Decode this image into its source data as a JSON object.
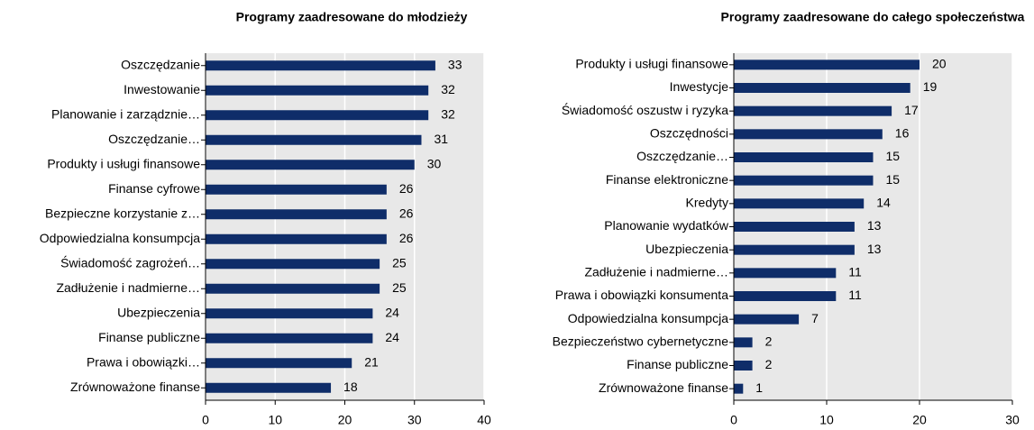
{
  "chart_data": [
    {
      "type": "bar",
      "orientation": "horizontal",
      "title": "Programy zaadresowane do młodzieży",
      "categories": [
        "Oszczędzanie",
        "Inwestowanie",
        "Planowanie i zarządznie…",
        "Oszczędzanie…",
        "Produkty i usługi finansowe",
        "Finanse cyfrowe",
        "Bezpieczne korzystanie z…",
        "Odpowiedzialna konsumpcja",
        "Świadomość zagrożeń…",
        "Zadłużenie i nadmierne…",
        "Ubezpieczenia",
        "Finanse publiczne",
        "Prawa i obowiązki…",
        "Zrównoważone finanse"
      ],
      "values": [
        33,
        32,
        32,
        31,
        30,
        26,
        26,
        26,
        25,
        25,
        24,
        24,
        21,
        18
      ],
      "color": "#0f2d69",
      "xlim": [
        0,
        40
      ],
      "xticks": [
        0,
        10,
        20,
        30,
        40
      ],
      "grid": true
    },
    {
      "type": "bar",
      "orientation": "horizontal",
      "title": "Programy zaadresowane do całego społeczeństwa",
      "categories": [
        "Produkty i usługi finansowe",
        "Inwestycje",
        "Świadomość oszustw i ryzyka",
        "Oszczędności",
        "Oszczędzanie…",
        "Finanse elektroniczne",
        "Kredyty",
        "Planowanie wydatków",
        "Ubezpieczenia",
        "Zadłużenie i nadmierne…",
        "Prawa i obowiązki konsumenta",
        "Odpowiedzialna konsumpcja",
        "Bezpieczeństwo cybernetyczne",
        "Finanse publiczne",
        "Zrównoważone finanse"
      ],
      "values": [
        20,
        19,
        17,
        16,
        15,
        15,
        14,
        13,
        13,
        11,
        11,
        7,
        2,
        2,
        1
      ],
      "color": "#0f2d69",
      "xlim": [
        0,
        30
      ],
      "xticks": [
        0,
        10,
        20,
        30
      ],
      "grid": true
    }
  ]
}
